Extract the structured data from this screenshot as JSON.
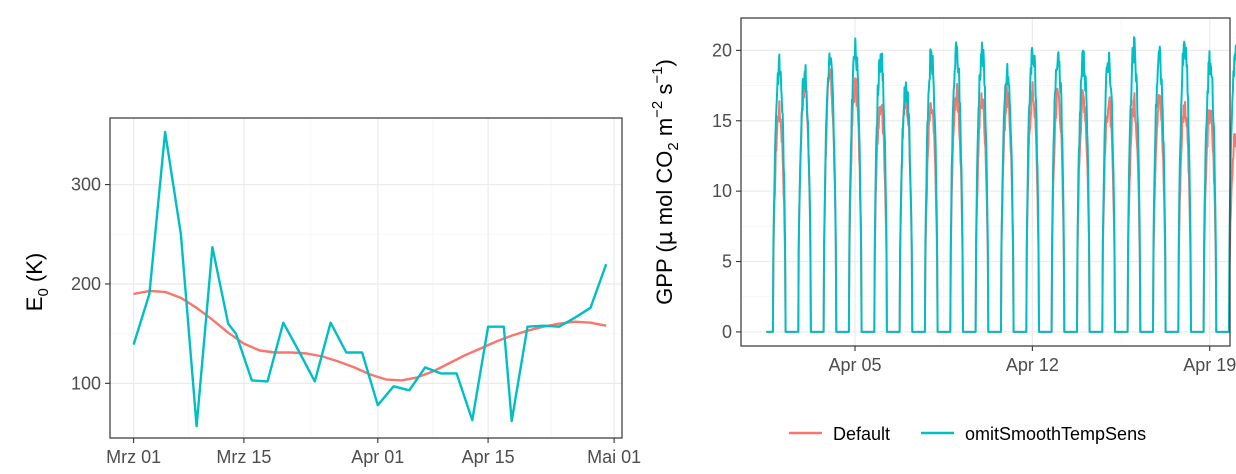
{
  "colors": {
    "default": "#F8766D",
    "omit": "#00BFC4",
    "grid_major": "#EBEBEB",
    "grid_minor": "#F5F5F5",
    "panel_border": "#333333"
  },
  "legend": {
    "labels": [
      "Default",
      "omitSmoothTempSens"
    ],
    "position": "bottom"
  },
  "chart_data": [
    {
      "type": "line",
      "ylabel_main": "E",
      "ylabel_sub": "0",
      "ylabel_unit": " (K)",
      "x_ticks": [
        "Mrz 01",
        "Mrz 15",
        "Apr 01",
        "Apr 15",
        "Mai 01"
      ],
      "x_tick_days": [
        0,
        14,
        31,
        45,
        61
      ],
      "xlim_days": [
        -3,
        62
      ],
      "y_ticks": [
        100,
        200,
        300
      ],
      "ylim": [
        45,
        367
      ],
      "grid": true,
      "series": [
        {
          "name": "Default",
          "x_days": [
            0,
            2,
            4,
            6,
            8,
            10,
            12,
            14,
            16,
            18,
            20,
            22,
            24,
            26,
            28,
            30,
            32,
            34,
            36,
            38,
            40,
            42,
            44,
            46,
            48,
            50,
            52,
            54,
            56,
            58,
            60
          ],
          "y": [
            190,
            193,
            192,
            186,
            176,
            164,
            151,
            140,
            133,
            131,
            131,
            130,
            127,
            122,
            116,
            109,
            104,
            103,
            106,
            112,
            120,
            128,
            135,
            142,
            148,
            153,
            157,
            160,
            162,
            161,
            158
          ]
        },
        {
          "name": "omitSmoothTempSens",
          "x_days": [
            0,
            2,
            4,
            6,
            8,
            10,
            12,
            13,
            15,
            17,
            19,
            21,
            23,
            25,
            27,
            29,
            31,
            33,
            35,
            37,
            39,
            41,
            43,
            45,
            47,
            48,
            50,
            52,
            54,
            56,
            58,
            60
          ],
          "y": [
            139,
            190,
            353,
            250,
            57,
            237,
            160,
            150,
            103,
            102,
            161,
            132,
            102,
            161,
            131,
            131,
            78,
            97,
            93,
            116,
            110,
            110,
            63,
            157,
            157,
            62,
            157,
            158,
            157,
            166,
            176,
            220
          ]
        }
      ]
    },
    {
      "type": "line",
      "ylabel_pre": "GPP (",
      "ylabel_mu": "µ",
      "ylabel_mid": " mol CO",
      "ylabel_sub": "2",
      "ylabel_m": " m",
      "ylabel_sup_m": "−2",
      "ylabel_s": " s",
      "ylabel_sup_s": "−1",
      "ylabel_close": ")",
      "x_ticks": [
        "Apr 05",
        "Apr 12",
        "Apr 19"
      ],
      "x_tick_days": [
        4,
        11,
        18
      ],
      "xlim_days": [
        -0.5,
        18.8
      ],
      "y_ticks": [
        0,
        5,
        10,
        15,
        20
      ],
      "ylim": [
        -1,
        22.3
      ],
      "grid": true,
      "day_start": 0.5,
      "days": 19,
      "daily_peaks": {
        "Default": [
          16.5,
          18.5,
          19.0,
          18.3,
          17.2,
          17.6,
          16.6,
          17.8,
          17.4,
          17.6,
          17.9,
          17.9,
          17.6,
          17.1,
          17.1,
          17.3,
          16.9,
          16.2,
          14.4
        ],
        "omitSmoothTempSens": [
          19.8,
          19.3,
          20.3,
          20.9,
          20.6,
          18.3,
          20.4,
          20.9,
          20.9,
          19.2,
          21.0,
          21.0,
          20.2,
          20.4,
          21.0,
          20.5,
          21.2,
          20.1,
          20.7
        ]
      }
    }
  ]
}
